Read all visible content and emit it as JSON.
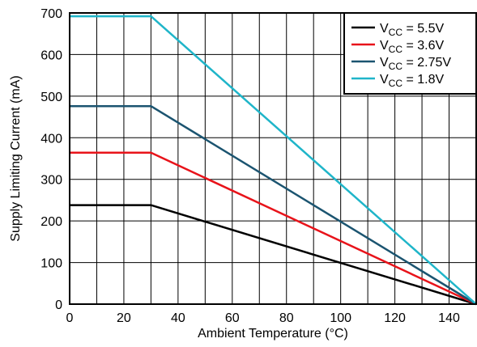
{
  "chart_data": {
    "type": "line",
    "title": "",
    "xlabel": "Ambient Temperature (°C)",
    "ylabel": "Supply Limiting Current (mA)",
    "xlim": [
      0,
      150
    ],
    "ylim": [
      0,
      700
    ],
    "xticks": [
      0,
      20,
      40,
      60,
      80,
      100,
      120,
      140
    ],
    "xtick_labels": [
      "0",
      "20",
      "40",
      "60",
      "80",
      "100",
      "120",
      "140"
    ],
    "yticks": [
      0,
      100,
      200,
      300,
      400,
      500,
      600,
      700
    ],
    "ytick_labels": [
      "0",
      "100",
      "200",
      "300",
      "400",
      "500",
      "600",
      "700"
    ],
    "vertical_grid_step": 10,
    "grid": true,
    "legend_position": "top-right",
    "series": [
      {
        "name": "V_CC = 5.5V",
        "name_main": "V",
        "name_sub": "CC",
        "name_rest": " = 5.5V",
        "color": "#000000",
        "x": [
          0,
          30,
          150
        ],
        "y": [
          238,
          238,
          0
        ]
      },
      {
        "name": "V_CC = 3.6V",
        "name_main": "V",
        "name_sub": "CC",
        "name_rest": " = 3.6V",
        "color": "#e8131a",
        "x": [
          0,
          30,
          150
        ],
        "y": [
          364,
          364,
          0
        ]
      },
      {
        "name": "V_CC = 2.75V",
        "name_main": "V",
        "name_sub": "CC",
        "name_rest": " = 2.75V",
        "color": "#1b5470",
        "x": [
          0,
          30,
          150
        ],
        "y": [
          476,
          476,
          0
        ]
      },
      {
        "name": "V_CC = 1.8V",
        "name_main": "V",
        "name_sub": "CC",
        "name_rest": " = 1.8V",
        "color": "#1fb5c9",
        "x": [
          0,
          30,
          150
        ],
        "y": [
          692,
          692,
          0
        ]
      }
    ]
  }
}
